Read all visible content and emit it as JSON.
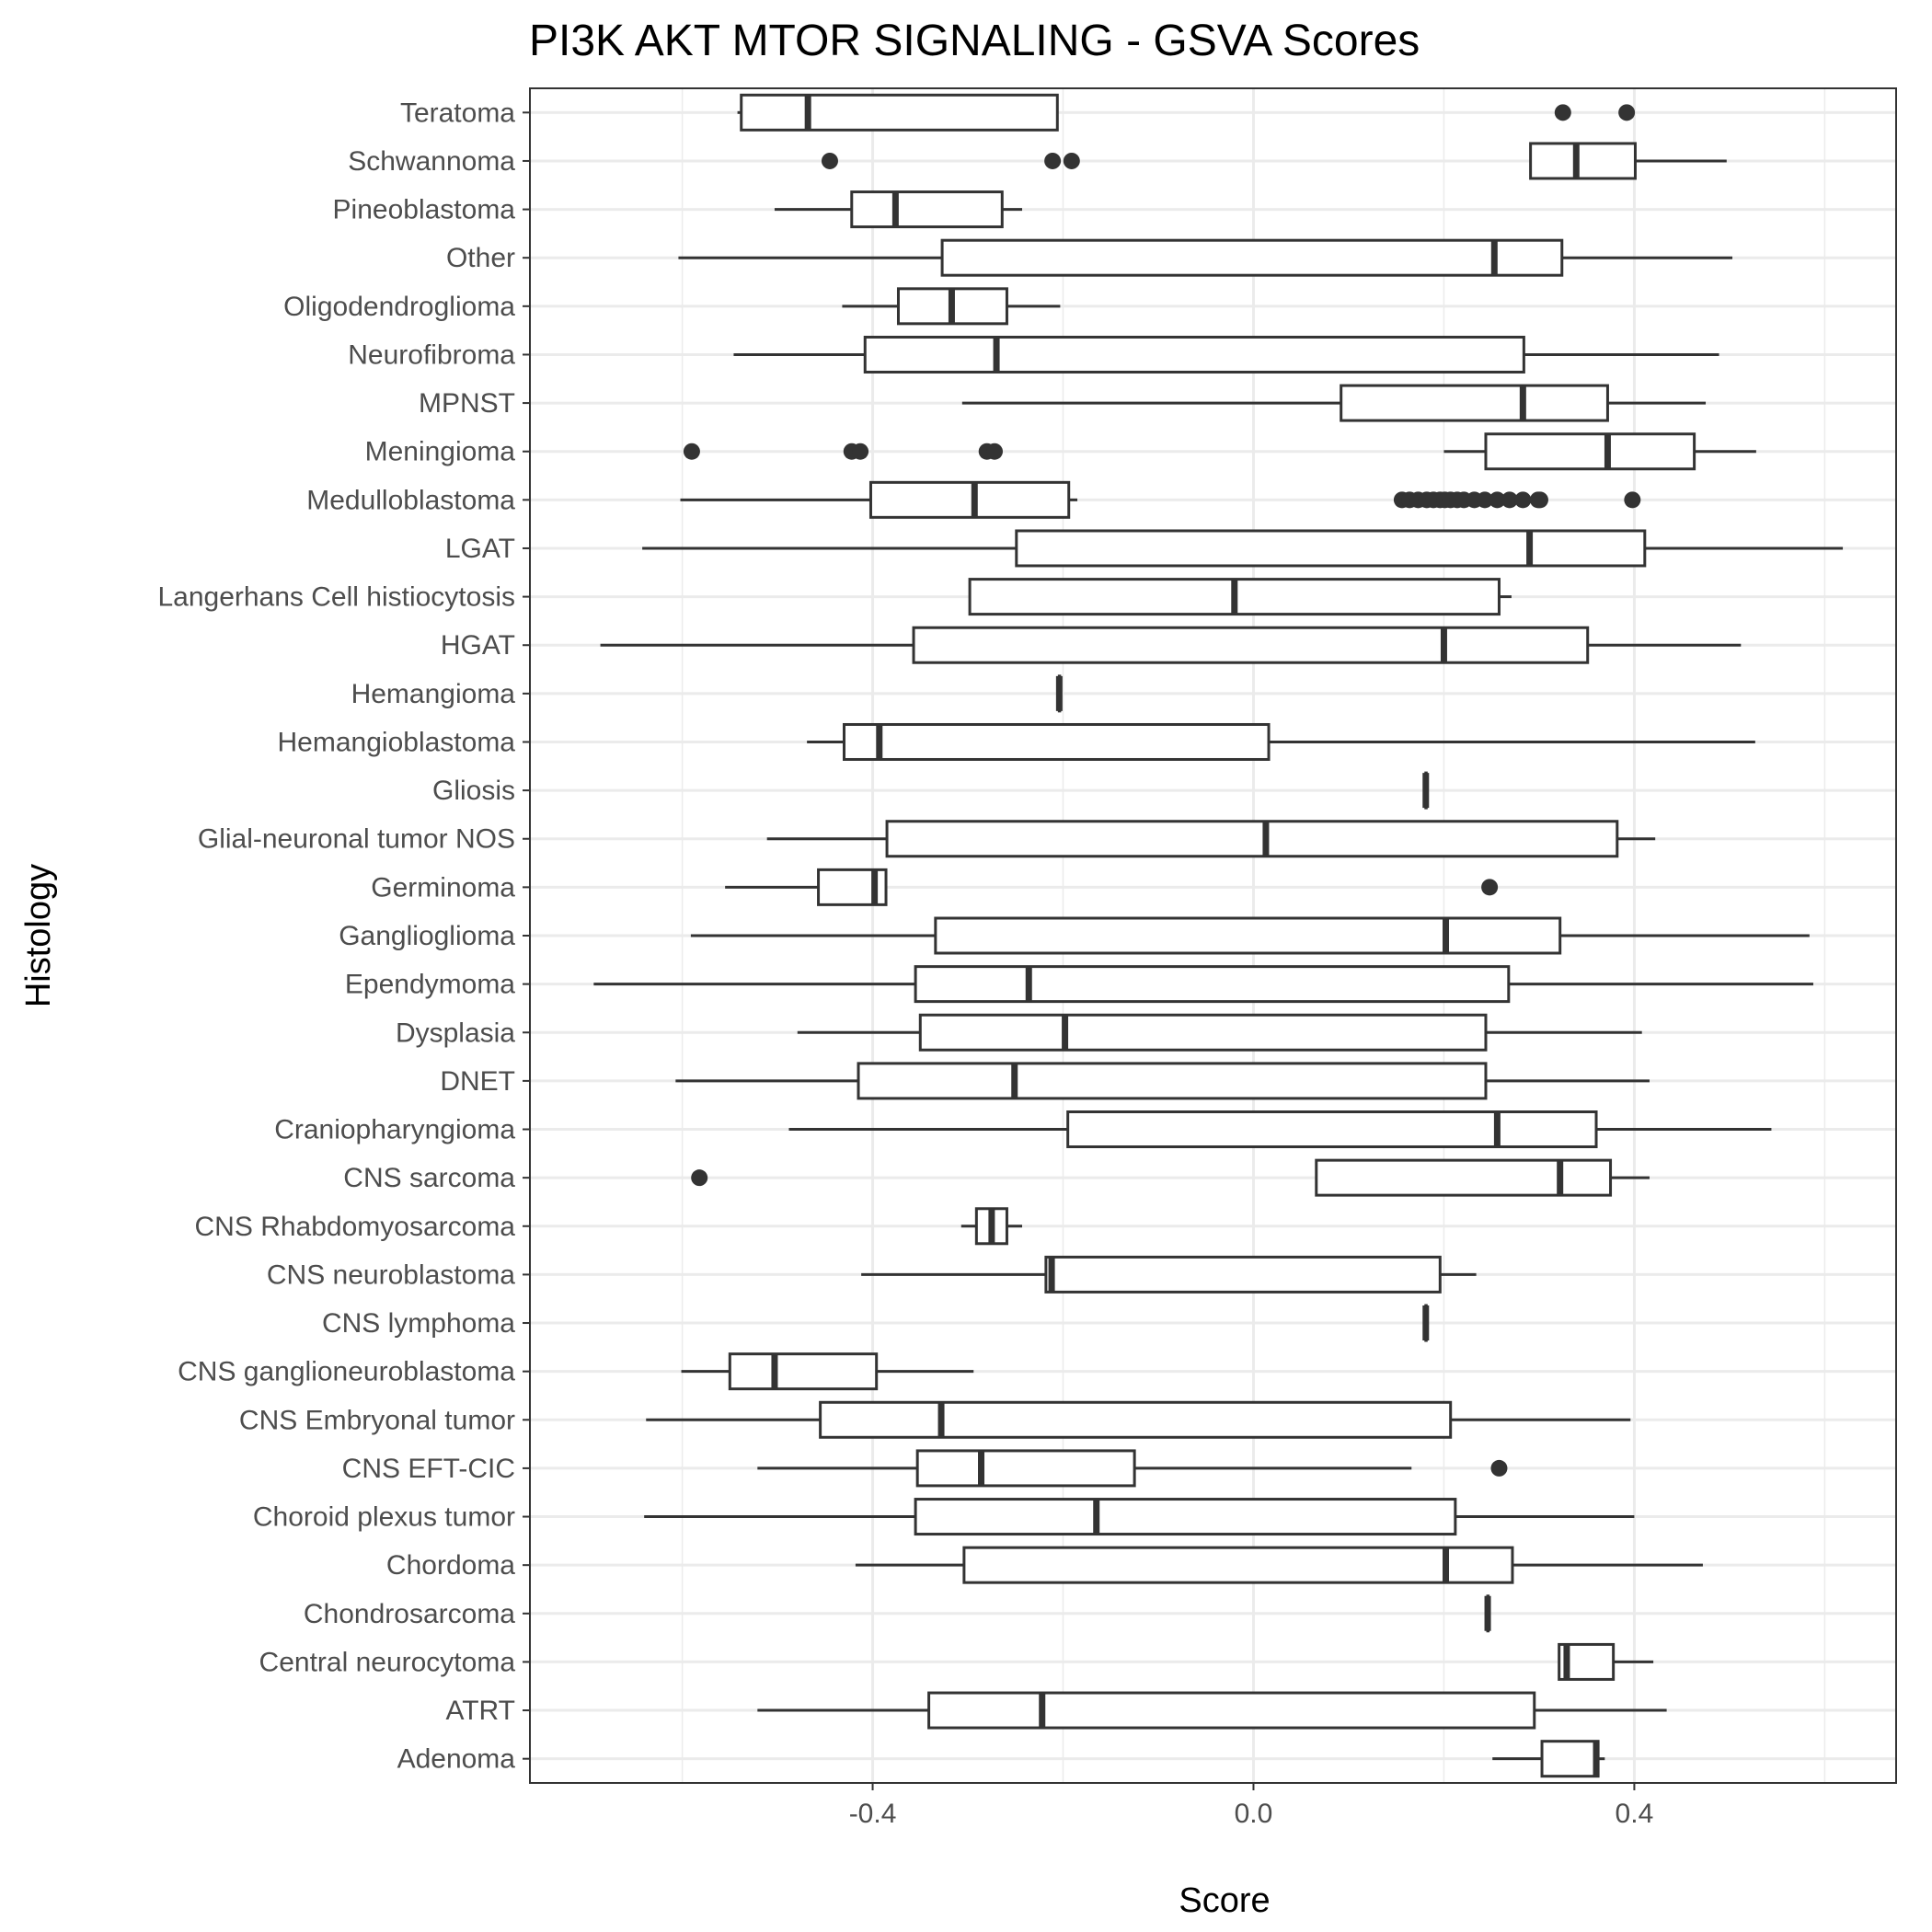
{
  "chart_data": {
    "type": "boxplot",
    "orientation": "horizontal",
    "title": "PI3K AKT MTOR SIGNALING - GSVA Scores",
    "xlabel": "Score",
    "ylabel": "Histology",
    "xlim": [
      -0.76,
      0.675
    ],
    "xticks": [
      -0.4,
      0.0,
      0.4
    ],
    "xtick_labels": [
      "-0.4",
      "0.0",
      "0.4"
    ],
    "grid": true,
    "colors": {
      "box": "#333333",
      "grid": "#ebebeb",
      "panel_border": "#333333",
      "outlier": "#333333"
    },
    "categories": [
      "Teratoma",
      "Schwannoma",
      "Pineoblastoma",
      "Other",
      "Oligodendroglioma",
      "Neurofibroma",
      "MPNST",
      "Meningioma",
      "Medulloblastoma",
      "LGAT",
      "Langerhans Cell histiocytosis",
      "HGAT",
      "Hemangioma",
      "Hemangioblastoma",
      "Gliosis",
      "Glial-neuronal tumor NOS",
      "Germinoma",
      "Ganglioglioma",
      "Ependymoma",
      "Dysplasia",
      "DNET",
      "Craniopharyngioma",
      "CNS sarcoma",
      "CNS Rhabdomyosarcoma",
      "CNS neuroblastoma",
      "CNS lymphoma",
      "CNS ganglioneuroblastoma",
      "CNS Embryonal tumor",
      "CNS EFT-CIC",
      "Choroid plexus tumor",
      "Chordoma",
      "Chondrosarcoma",
      "Central neurocytoma",
      "ATRT",
      "Adenoma"
    ],
    "boxes": [
      {
        "label": "Teratoma",
        "whisker_low": -0.542,
        "q1": -0.538,
        "median": -0.468,
        "q3": -0.206,
        "whisker_high": -0.206,
        "outliers": [
          0.325,
          0.392
        ]
      },
      {
        "label": "Schwannoma",
        "whisker_low": 0.291,
        "q1": 0.291,
        "median": 0.339,
        "q3": 0.401,
        "whisker_high": 0.497,
        "outliers": [
          -0.445,
          -0.211,
          -0.191
        ]
      },
      {
        "label": "Pineoblastoma",
        "whisker_low": -0.503,
        "q1": -0.422,
        "median": -0.376,
        "q3": -0.264,
        "whisker_high": -0.243,
        "outliers": []
      },
      {
        "label": "Other",
        "whisker_low": -0.604,
        "q1": -0.327,
        "median": 0.253,
        "q3": 0.324,
        "whisker_high": 0.503,
        "outliers": []
      },
      {
        "label": "Oligodendroglioma",
        "whisker_low": -0.432,
        "q1": -0.373,
        "median": -0.317,
        "q3": -0.259,
        "whisker_high": -0.203,
        "outliers": []
      },
      {
        "label": "Neurofibroma",
        "whisker_low": -0.546,
        "q1": -0.408,
        "median": -0.27,
        "q3": 0.284,
        "whisker_high": 0.489,
        "outliers": []
      },
      {
        "label": "MPNST",
        "whisker_low": -0.306,
        "q1": 0.092,
        "median": 0.283,
        "q3": 0.372,
        "whisker_high": 0.475,
        "outliers": []
      },
      {
        "label": "Meningioma",
        "whisker_low": 0.2,
        "q1": 0.244,
        "median": 0.372,
        "q3": 0.463,
        "whisker_high": 0.528,
        "outliers": [
          -0.59,
          -0.422,
          -0.413,
          -0.28,
          -0.272
        ]
      },
      {
        "label": "Medulloblastoma",
        "whisker_low": -0.602,
        "q1": -0.402,
        "median": -0.293,
        "q3": -0.194,
        "whisker_high": -0.185,
        "outliers": [
          0.156,
          0.164,
          0.173,
          0.182,
          0.189,
          0.196,
          0.201,
          0.207,
          0.214,
          0.221,
          0.232,
          0.243,
          0.256,
          0.269,
          0.283,
          0.299,
          0.301,
          0.398
        ]
      },
      {
        "label": "LGAT",
        "whisker_low": -0.642,
        "q1": -0.249,
        "median": 0.29,
        "q3": 0.411,
        "whisker_high": 0.619,
        "outliers": []
      },
      {
        "label": "Langerhans Cell histiocytosis",
        "whisker_low": -0.298,
        "q1": -0.298,
        "median": -0.02,
        "q3": 0.258,
        "whisker_high": 0.271,
        "outliers": []
      },
      {
        "label": "HGAT",
        "whisker_low": -0.686,
        "q1": -0.357,
        "median": 0.2,
        "q3": 0.351,
        "whisker_high": 0.512,
        "outliers": []
      },
      {
        "label": "Hemangioma",
        "whisker_low": -0.204,
        "q1": -0.204,
        "median": -0.204,
        "q3": -0.204,
        "whisker_high": -0.204,
        "outliers": []
      },
      {
        "label": "Hemangioblastoma",
        "whisker_low": -0.469,
        "q1": -0.43,
        "median": -0.393,
        "q3": 0.016,
        "whisker_high": 0.527,
        "outliers": []
      },
      {
        "label": "Gliosis",
        "whisker_low": 0.181,
        "q1": 0.181,
        "median": 0.181,
        "q3": 0.181,
        "whisker_high": 0.181,
        "outliers": []
      },
      {
        "label": "Glial-neuronal tumor NOS",
        "whisker_low": -0.511,
        "q1": -0.385,
        "median": 0.013,
        "q3": 0.382,
        "whisker_high": 0.422,
        "outliers": []
      },
      {
        "label": "Germinoma",
        "whisker_low": -0.555,
        "q1": -0.457,
        "median": -0.398,
        "q3": -0.386,
        "whisker_high": -0.386,
        "outliers": [
          0.248
        ]
      },
      {
        "label": "Ganglioglioma",
        "whisker_low": -0.591,
        "q1": -0.334,
        "median": 0.202,
        "q3": 0.322,
        "whisker_high": 0.584,
        "outliers": []
      },
      {
        "label": "Ependymoma",
        "whisker_low": -0.693,
        "q1": -0.355,
        "median": -0.236,
        "q3": 0.268,
        "whisker_high": 0.588,
        "outliers": []
      },
      {
        "label": "Dysplasia",
        "whisker_low": -0.479,
        "q1": -0.35,
        "median": -0.198,
        "q3": 0.244,
        "whisker_high": 0.408,
        "outliers": []
      },
      {
        "label": "DNET",
        "whisker_low": -0.607,
        "q1": -0.415,
        "median": -0.251,
        "q3": 0.244,
        "whisker_high": 0.416,
        "outliers": []
      },
      {
        "label": "Craniopharyngioma",
        "whisker_low": -0.488,
        "q1": -0.195,
        "median": 0.256,
        "q3": 0.36,
        "whisker_high": 0.544,
        "outliers": []
      },
      {
        "label": "CNS sarcoma",
        "whisker_low": 0.066,
        "q1": 0.066,
        "median": 0.322,
        "q3": 0.375,
        "whisker_high": 0.416,
        "outliers": [
          -0.582
        ]
      },
      {
        "label": "CNS Rhabdomyosarcoma",
        "whisker_low": -0.307,
        "q1": -0.291,
        "median": -0.275,
        "q3": -0.259,
        "whisker_high": -0.243,
        "outliers": []
      },
      {
        "label": "CNS neuroblastoma",
        "whisker_low": -0.412,
        "q1": -0.218,
        "median": -0.212,
        "q3": 0.196,
        "whisker_high": 0.234,
        "outliers": []
      },
      {
        "label": "CNS lymphoma",
        "whisker_low": 0.181,
        "q1": 0.181,
        "median": 0.181,
        "q3": 0.181,
        "whisker_high": 0.181,
        "outliers": []
      },
      {
        "label": "CNS ganglioneuroblastoma",
        "whisker_low": -0.601,
        "q1": -0.55,
        "median": -0.503,
        "q3": -0.396,
        "whisker_high": -0.294,
        "outliers": []
      },
      {
        "label": "CNS Embryonal tumor",
        "whisker_low": -0.638,
        "q1": -0.455,
        "median": -0.328,
        "q3": 0.207,
        "whisker_high": 0.396,
        "outliers": []
      },
      {
        "label": "CNS EFT-CIC",
        "whisker_low": -0.521,
        "q1": -0.353,
        "median": -0.286,
        "q3": -0.125,
        "whisker_high": 0.166,
        "outliers": [
          0.258
        ]
      },
      {
        "label": "Choroid plexus tumor",
        "whisker_low": -0.64,
        "q1": -0.355,
        "median": -0.165,
        "q3": 0.212,
        "whisker_high": 0.4,
        "outliers": []
      },
      {
        "label": "Chordoma",
        "whisker_low": -0.418,
        "q1": -0.304,
        "median": 0.202,
        "q3": 0.272,
        "whisker_high": 0.472,
        "outliers": []
      },
      {
        "label": "Chondrosarcoma",
        "whisker_low": 0.246,
        "q1": 0.246,
        "median": 0.246,
        "q3": 0.246,
        "whisker_high": 0.246,
        "outliers": []
      },
      {
        "label": "Central neurocytoma",
        "whisker_low": 0.321,
        "q1": 0.321,
        "median": 0.329,
        "q3": 0.378,
        "whisker_high": 0.42,
        "outliers": []
      },
      {
        "label": "ATRT",
        "whisker_low": -0.521,
        "q1": -0.341,
        "median": -0.222,
        "q3": 0.295,
        "whisker_high": 0.434,
        "outliers": []
      },
      {
        "label": "Adenoma",
        "whisker_low": 0.251,
        "q1": 0.303,
        "median": 0.36,
        "q3": 0.362,
        "whisker_high": 0.369,
        "outliers": []
      }
    ]
  }
}
